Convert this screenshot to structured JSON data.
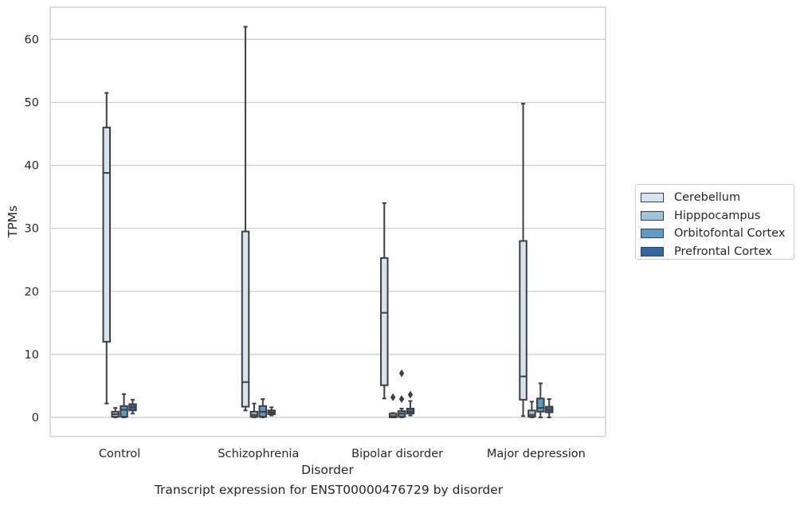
{
  "chart_data": {
    "type": "box",
    "xlabel": "Disorder",
    "ylabel": "TPMs",
    "caption": "Transcript expression for ENST00000476729 by disorder",
    "ylim": [
      -3,
      65
    ],
    "yticks": [
      0,
      10,
      20,
      30,
      40,
      50,
      60
    ],
    "grid": "horizontal",
    "legend_position": "right",
    "categories": [
      "Control",
      "Schizophrenia",
      "Bipolar disorder",
      "Major depression"
    ],
    "series": [
      {
        "name": "Cerebellum",
        "color": "#d6e4f2",
        "boxes": [
          {
            "whislo": 2.2,
            "q1": 12.0,
            "med": 38.8,
            "q3": 46.0,
            "whishi": 51.5,
            "fliers": []
          },
          {
            "whislo": 1.1,
            "q1": 1.7,
            "med": 5.6,
            "q3": 29.5,
            "whishi": 62.0,
            "fliers": []
          },
          {
            "whislo": 3.0,
            "q1": 5.1,
            "med": 16.6,
            "q3": 25.3,
            "whishi": 34.0,
            "fliers": []
          },
          {
            "whislo": 0.2,
            "q1": 2.8,
            "med": 6.5,
            "q3": 28.0,
            "whishi": 49.8,
            "fliers": []
          }
        ]
      },
      {
        "name": "Hipppocampus",
        "color": "#9ec5df",
        "boxes": [
          {
            "whislo": 0.0,
            "q1": 0.1,
            "med": 0.5,
            "q3": 0.9,
            "whishi": 1.5,
            "fliers": []
          },
          {
            "whislo": 0.0,
            "q1": 0.1,
            "med": 0.4,
            "q3": 0.9,
            "whishi": 2.2,
            "fliers": []
          },
          {
            "whislo": 0.0,
            "q1": 0.0,
            "med": 0.2,
            "q3": 0.6,
            "whishi": 0.7,
            "fliers": [
              3.2
            ]
          },
          {
            "whislo": 0.0,
            "q1": 0.1,
            "med": 0.4,
            "q3": 1.1,
            "whishi": 2.5,
            "fliers": []
          }
        ]
      },
      {
        "name": "Orbitofontal Cortex",
        "color": "#5a9ac8",
        "boxes": [
          {
            "whislo": 0.0,
            "q1": 0.1,
            "med": 1.2,
            "q3": 1.8,
            "whishi": 3.7,
            "fliers": []
          },
          {
            "whislo": 0.0,
            "q1": 0.1,
            "med": 0.9,
            "q3": 1.8,
            "whishi": 2.9,
            "fliers": []
          },
          {
            "whislo": 0.0,
            "q1": 0.1,
            "med": 0.6,
            "q3": 1.0,
            "whishi": 1.4,
            "fliers": [
              7.0,
              2.9
            ]
          },
          {
            "whislo": 0.0,
            "q1": 0.9,
            "med": 1.5,
            "q3": 3.0,
            "whishi": 5.4,
            "fliers": []
          }
        ]
      },
      {
        "name": "Prefrontal Cortex",
        "color": "#2b6aa7",
        "boxes": [
          {
            "whislo": 0.6,
            "q1": 1.1,
            "med": 1.6,
            "q3": 2.1,
            "whishi": 2.8,
            "fliers": []
          },
          {
            "whislo": 0.3,
            "q1": 0.5,
            "med": 0.8,
            "q3": 1.1,
            "whishi": 1.6,
            "fliers": []
          },
          {
            "whislo": 0.3,
            "q1": 0.6,
            "med": 0.9,
            "q3": 1.4,
            "whishi": 2.6,
            "fliers": [
              3.6
            ]
          },
          {
            "whislo": 0.0,
            "q1": 0.8,
            "med": 1.2,
            "q3": 1.7,
            "whishi": 2.9,
            "fliers": []
          }
        ]
      }
    ]
  }
}
